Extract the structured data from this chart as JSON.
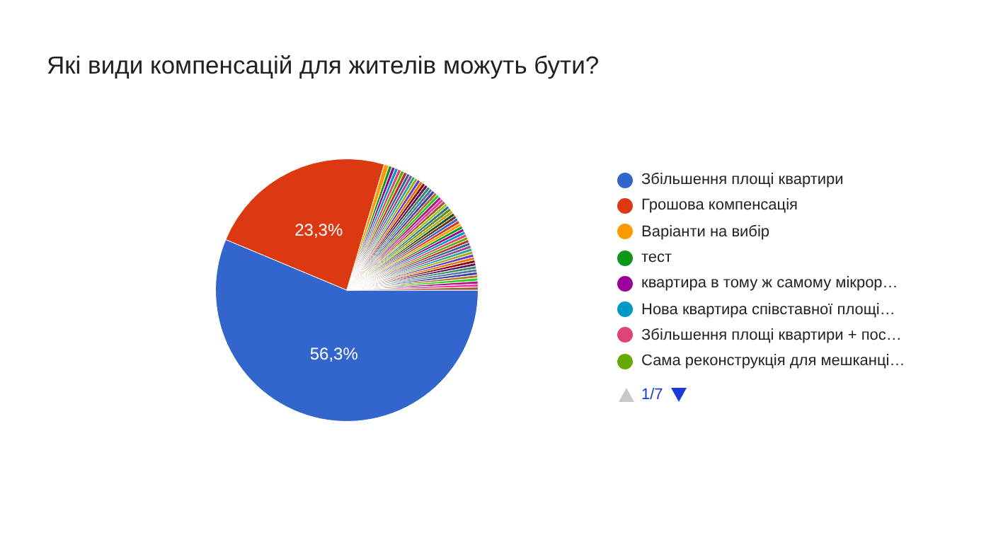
{
  "chart_data": {
    "type": "pie",
    "title": "Які види компенсацій для жителів можуть бути?",
    "categories": [
      "Збільшення площі квартири",
      "Грошова компенсація",
      "Варіанти на вибір",
      "тест",
      "квартира в тому ж самому мікрор…",
      "Нова квартира співставної площі…",
      "Збільшення площі квартири + пос…",
      "Сама реконструкція для мешканці…",
      null,
      null,
      null,
      null,
      null,
      null,
      null,
      null,
      null,
      null,
      null,
      null,
      null,
      null,
      null,
      null,
      null,
      null,
      null,
      null,
      null,
      null,
      null,
      null,
      null,
      null,
      null,
      null,
      null,
      null,
      null,
      null,
      null,
      null,
      null,
      null,
      null,
      null,
      null,
      null,
      null,
      null,
      null,
      null,
      null,
      null,
      null,
      null
    ],
    "values": [
      56.3,
      23.3,
      0.6,
      0.4,
      0.4,
      0.4,
      0.4,
      0.4,
      0.41,
      0.37,
      0.37,
      0.37,
      0.37,
      0.37,
      0.37,
      0.37,
      0.37,
      0.37,
      0.37,
      0.37,
      0.37,
      0.37,
      0.37,
      0.37,
      0.37,
      0.37,
      0.37,
      0.37,
      0.37,
      0.37,
      0.37,
      0.37,
      0.37,
      0.37,
      0.37,
      0.37,
      0.37,
      0.37,
      0.37,
      0.37,
      0.37,
      0.37,
      0.37,
      0.37,
      0.37,
      0.37,
      0.37,
      0.37,
      0.37,
      0.37,
      0.37,
      0.37,
      0.37,
      0.37,
      0.37,
      0.37
    ],
    "colors": [
      "#3366cc",
      "#dc3912",
      "#ff9900",
      "#109618",
      "#990099",
      "#0099c6",
      "#dd4477",
      "#66aa00",
      "#b82e2e",
      "#316395",
      "#994499",
      "#22aa99",
      "#aaaa11",
      "#6633cc",
      "#e67300",
      "#8b0707",
      "#651067",
      "#329262",
      "#5574a6",
      "#3b3eac",
      "#b77322",
      "#16d620",
      "#b91383",
      "#f4359e",
      "#9c5935",
      "#a9c413",
      "#2a778d",
      "#668d1c",
      "#bea413",
      "#0c5922",
      "#743411",
      "#3366cc",
      "#dc3912",
      "#ff9900",
      "#109618",
      "#990099",
      "#0099c6",
      "#dd4477",
      "#66aa00",
      "#b82e2e",
      "#316395",
      "#994499",
      "#22aa99",
      "#aaaa11",
      "#6633cc",
      "#e67300",
      "#8b0707",
      "#651067",
      "#329262",
      "#5574a6",
      "#3b3eac",
      "#b77322",
      "#16d620",
      "#b91383",
      "#f4359e",
      "#9c5935"
    ],
    "value_labels": [
      "56,3%",
      "23,3%",
      null,
      null,
      null,
      null,
      null,
      null,
      null,
      null,
      null,
      null,
      null,
      null,
      null,
      null,
      null,
      null,
      null,
      null,
      null,
      null,
      null,
      null,
      null,
      null,
      null,
      null,
      null,
      null,
      null,
      null,
      null,
      null,
      null,
      null,
      null,
      null,
      null,
      null,
      null,
      null,
      null,
      null,
      null,
      null,
      null,
      null,
      null,
      null,
      null,
      null,
      null,
      null,
      null,
      null
    ],
    "legend": "right",
    "annotations": [
      "1/7"
    ]
  }
}
